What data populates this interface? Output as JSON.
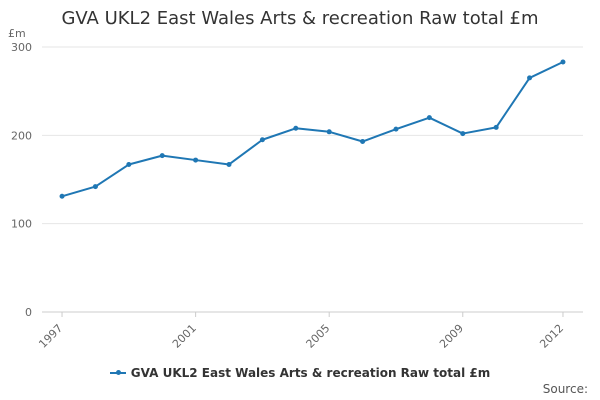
{
  "chart_data": {
    "type": "line",
    "title": "GVA UKL2 East Wales Arts & recreation Raw total £m",
    "ylabel": "£m",
    "xlabel": "",
    "x": [
      1997,
      1998,
      1999,
      2000,
      2001,
      2002,
      2003,
      2004,
      2005,
      2006,
      2007,
      2008,
      2009,
      2010,
      2011,
      2012
    ],
    "x_tick_labels": [
      "1997",
      "2001",
      "2005",
      "2009",
      "2012"
    ],
    "x_tick_values": [
      1997,
      2001,
      2005,
      2009,
      2012
    ],
    "y_ticks": [
      0,
      100,
      200,
      300
    ],
    "ylim": [
      0,
      300
    ],
    "grid": true,
    "legend_position": "bottom-center",
    "series": [
      {
        "name": "GVA UKL2 East Wales Arts & recreation Raw total £m",
        "color": "#1f77b4",
        "values": [
          131,
          142,
          167,
          177,
          172,
          167,
          195,
          208,
          204,
          193,
          207,
          220,
          202,
          209,
          265,
          283
        ]
      }
    ],
    "source_label": "Source:"
  }
}
